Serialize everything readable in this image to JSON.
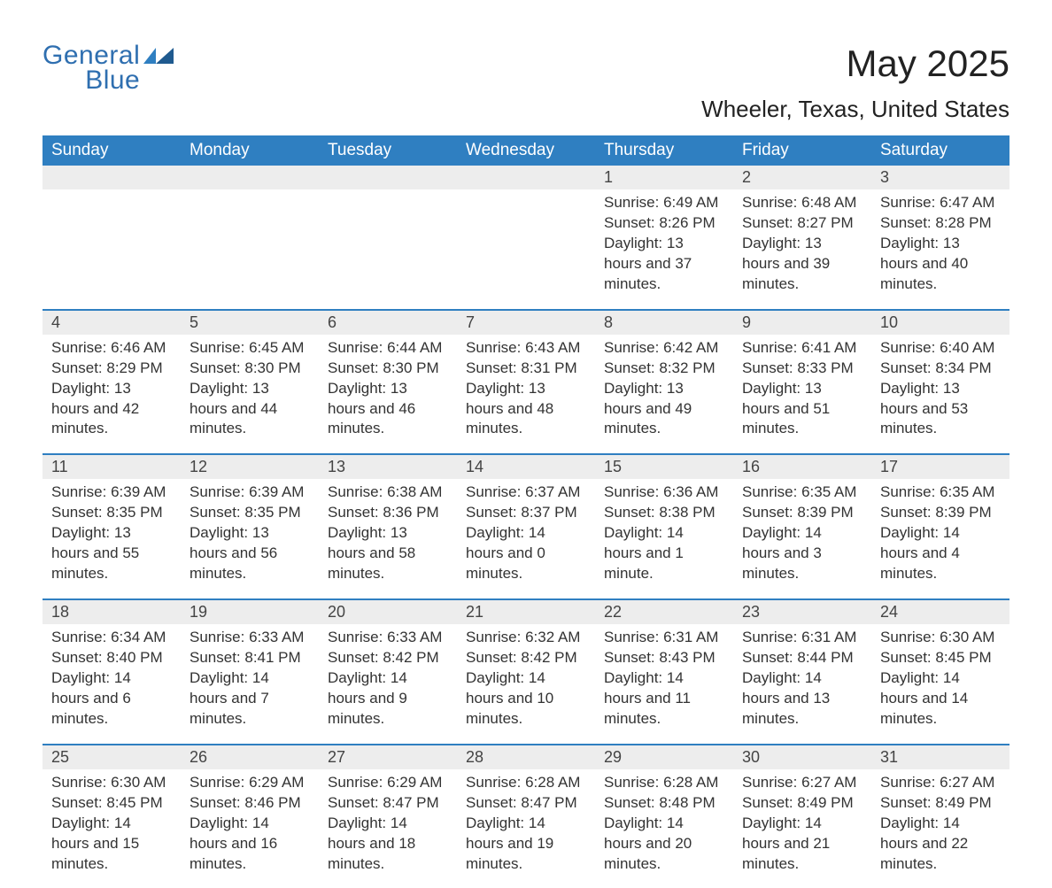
{
  "brand": {
    "name1": "General",
    "name2": "Blue",
    "accent_color": "#2f7fc1"
  },
  "title": "May 2025",
  "location": "Wheeler, Texas, United States",
  "colors": {
    "header_bg": "#2f7fc1",
    "header_text": "#ffffff",
    "daynum_bg": "#ededed",
    "divider": "#2f7fc1",
    "body_text": "#333333",
    "page_bg": "#ffffff"
  },
  "weekdays": [
    "Sunday",
    "Monday",
    "Tuesday",
    "Wednesday",
    "Thursday",
    "Friday",
    "Saturday"
  ],
  "weeks": [
    [
      null,
      null,
      null,
      null,
      {
        "n": "1",
        "sunrise": "6:49 AM",
        "sunset": "8:26 PM",
        "daylight": "13 hours and 37 minutes."
      },
      {
        "n": "2",
        "sunrise": "6:48 AM",
        "sunset": "8:27 PM",
        "daylight": "13 hours and 39 minutes."
      },
      {
        "n": "3",
        "sunrise": "6:47 AM",
        "sunset": "8:28 PM",
        "daylight": "13 hours and 40 minutes."
      }
    ],
    [
      {
        "n": "4",
        "sunrise": "6:46 AM",
        "sunset": "8:29 PM",
        "daylight": "13 hours and 42 minutes."
      },
      {
        "n": "5",
        "sunrise": "6:45 AM",
        "sunset": "8:30 PM",
        "daylight": "13 hours and 44 minutes."
      },
      {
        "n": "6",
        "sunrise": "6:44 AM",
        "sunset": "8:30 PM",
        "daylight": "13 hours and 46 minutes."
      },
      {
        "n": "7",
        "sunrise": "6:43 AM",
        "sunset": "8:31 PM",
        "daylight": "13 hours and 48 minutes."
      },
      {
        "n": "8",
        "sunrise": "6:42 AM",
        "sunset": "8:32 PM",
        "daylight": "13 hours and 49 minutes."
      },
      {
        "n": "9",
        "sunrise": "6:41 AM",
        "sunset": "8:33 PM",
        "daylight": "13 hours and 51 minutes."
      },
      {
        "n": "10",
        "sunrise": "6:40 AM",
        "sunset": "8:34 PM",
        "daylight": "13 hours and 53 minutes."
      }
    ],
    [
      {
        "n": "11",
        "sunrise": "6:39 AM",
        "sunset": "8:35 PM",
        "daylight": "13 hours and 55 minutes."
      },
      {
        "n": "12",
        "sunrise": "6:39 AM",
        "sunset": "8:35 PM",
        "daylight": "13 hours and 56 minutes."
      },
      {
        "n": "13",
        "sunrise": "6:38 AM",
        "sunset": "8:36 PM",
        "daylight": "13 hours and 58 minutes."
      },
      {
        "n": "14",
        "sunrise": "6:37 AM",
        "sunset": "8:37 PM",
        "daylight": "14 hours and 0 minutes."
      },
      {
        "n": "15",
        "sunrise": "6:36 AM",
        "sunset": "8:38 PM",
        "daylight": "14 hours and 1 minute."
      },
      {
        "n": "16",
        "sunrise": "6:35 AM",
        "sunset": "8:39 PM",
        "daylight": "14 hours and 3 minutes."
      },
      {
        "n": "17",
        "sunrise": "6:35 AM",
        "sunset": "8:39 PM",
        "daylight": "14 hours and 4 minutes."
      }
    ],
    [
      {
        "n": "18",
        "sunrise": "6:34 AM",
        "sunset": "8:40 PM",
        "daylight": "14 hours and 6 minutes."
      },
      {
        "n": "19",
        "sunrise": "6:33 AM",
        "sunset": "8:41 PM",
        "daylight": "14 hours and 7 minutes."
      },
      {
        "n": "20",
        "sunrise": "6:33 AM",
        "sunset": "8:42 PM",
        "daylight": "14 hours and 9 minutes."
      },
      {
        "n": "21",
        "sunrise": "6:32 AM",
        "sunset": "8:42 PM",
        "daylight": "14 hours and 10 minutes."
      },
      {
        "n": "22",
        "sunrise": "6:31 AM",
        "sunset": "8:43 PM",
        "daylight": "14 hours and 11 minutes."
      },
      {
        "n": "23",
        "sunrise": "6:31 AM",
        "sunset": "8:44 PM",
        "daylight": "14 hours and 13 minutes."
      },
      {
        "n": "24",
        "sunrise": "6:30 AM",
        "sunset": "8:45 PM",
        "daylight": "14 hours and 14 minutes."
      }
    ],
    [
      {
        "n": "25",
        "sunrise": "6:30 AM",
        "sunset": "8:45 PM",
        "daylight": "14 hours and 15 minutes."
      },
      {
        "n": "26",
        "sunrise": "6:29 AM",
        "sunset": "8:46 PM",
        "daylight": "14 hours and 16 minutes."
      },
      {
        "n": "27",
        "sunrise": "6:29 AM",
        "sunset": "8:47 PM",
        "daylight": "14 hours and 18 minutes."
      },
      {
        "n": "28",
        "sunrise": "6:28 AM",
        "sunset": "8:47 PM",
        "daylight": "14 hours and 19 minutes."
      },
      {
        "n": "29",
        "sunrise": "6:28 AM",
        "sunset": "8:48 PM",
        "daylight": "14 hours and 20 minutes."
      },
      {
        "n": "30",
        "sunrise": "6:27 AM",
        "sunset": "8:49 PM",
        "daylight": "14 hours and 21 minutes."
      },
      {
        "n": "31",
        "sunrise": "6:27 AM",
        "sunset": "8:49 PM",
        "daylight": "14 hours and 22 minutes."
      }
    ]
  ],
  "labels": {
    "sunrise": "Sunrise: ",
    "sunset": "Sunset: ",
    "daylight": "Daylight: "
  }
}
